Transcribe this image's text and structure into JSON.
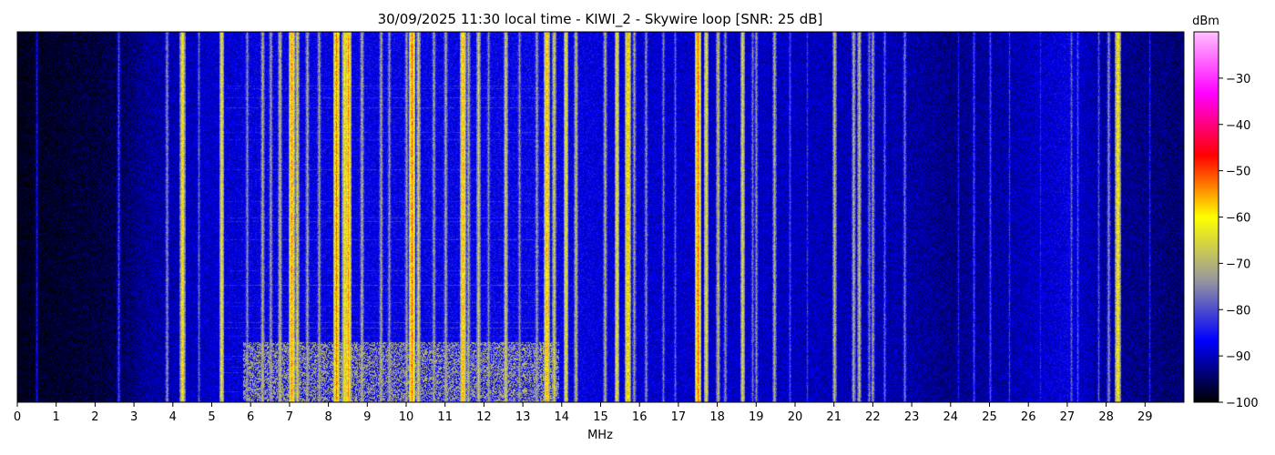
{
  "chart_data": {
    "type": "heatmap",
    "title": "30/09/2025 11:30 local time - KIWI_2 - Skywire loop [SNR: 25 dB]",
    "xlabel": "MHz",
    "xlim": [
      0,
      30
    ],
    "x_ticks": [
      "0",
      "1",
      "2",
      "3",
      "4",
      "5",
      "6",
      "7",
      "8",
      "9",
      "10",
      "11",
      "12",
      "13",
      "14",
      "15",
      "16",
      "17",
      "18",
      "19",
      "20",
      "21",
      "22",
      "23",
      "24",
      "25",
      "26",
      "27",
      "28",
      "29"
    ],
    "colorbar": {
      "label": "dBm",
      "range": [
        -100,
        -20
      ],
      "ticks": [
        "−30",
        "−40",
        "−50",
        "−60",
        "−70",
        "−80",
        "−90",
        "−100"
      ],
      "tick_values": [
        -30,
        -40,
        -50,
        -60,
        -70,
        -80,
        -90,
        -100
      ],
      "colormap": [
        "#000000",
        "#0000ff",
        "#9a9a9a",
        "#ffff00",
        "#ff0000",
        "#ff00ff",
        "#ffc0ff"
      ]
    },
    "background_profile_dbm": [
      [
        0,
        -99
      ],
      [
        2.5,
        -96
      ],
      [
        3.3,
        -92
      ],
      [
        5.2,
        -89
      ],
      [
        6,
        -88
      ],
      [
        13.5,
        -87
      ],
      [
        16,
        -89
      ],
      [
        20,
        -90
      ],
      [
        22.8,
        -91
      ],
      [
        24,
        -93
      ],
      [
        26,
        -90
      ],
      [
        27,
        -88
      ],
      [
        28,
        -92
      ],
      [
        30,
        -94
      ]
    ],
    "strong_signals_mhz": [
      {
        "f": 0.5,
        "dbm": -86
      },
      {
        "f": 2.6,
        "dbm": -80
      },
      {
        "f": 3.85,
        "dbm": -74
      },
      {
        "f": 4.25,
        "dbm": -60
      },
      {
        "f": 4.65,
        "dbm": -78
      },
      {
        "f": 5.25,
        "dbm": -62
      },
      {
        "f": 5.9,
        "dbm": -74
      },
      {
        "f": 6.3,
        "dbm": -70
      },
      {
        "f": 6.5,
        "dbm": -72
      },
      {
        "f": 6.75,
        "dbm": -68
      },
      {
        "f": 7.05,
        "dbm": -54
      },
      {
        "f": 7.2,
        "dbm": -66
      },
      {
        "f": 7.45,
        "dbm": -71
      },
      {
        "f": 7.75,
        "dbm": -72
      },
      {
        "f": 8.2,
        "dbm": -52
      },
      {
        "f": 8.4,
        "dbm": -60
      },
      {
        "f": 8.5,
        "dbm": -54
      },
      {
        "f": 8.85,
        "dbm": -70
      },
      {
        "f": 9.35,
        "dbm": -71
      },
      {
        "f": 9.55,
        "dbm": -73
      },
      {
        "f": 10.0,
        "dbm": -72
      },
      {
        "f": 10.15,
        "dbm": -52
      },
      {
        "f": 10.3,
        "dbm": -66
      },
      {
        "f": 10.7,
        "dbm": -72
      },
      {
        "f": 11.0,
        "dbm": -71
      },
      {
        "f": 11.45,
        "dbm": -56
      },
      {
        "f": 11.6,
        "dbm": -70
      },
      {
        "f": 11.85,
        "dbm": -66
      },
      {
        "f": 12.1,
        "dbm": -74
      },
      {
        "f": 12.55,
        "dbm": -66
      },
      {
        "f": 12.9,
        "dbm": -74
      },
      {
        "f": 13.35,
        "dbm": -72
      },
      {
        "f": 13.6,
        "dbm": -56
      },
      {
        "f": 13.8,
        "dbm": -66
      },
      {
        "f": 14.1,
        "dbm": -62
      },
      {
        "f": 14.35,
        "dbm": -68
      },
      {
        "f": 15.1,
        "dbm": -70
      },
      {
        "f": 15.4,
        "dbm": -62
      },
      {
        "f": 15.7,
        "dbm": -56
      },
      {
        "f": 15.85,
        "dbm": -72
      },
      {
        "f": 16.15,
        "dbm": -74
      },
      {
        "f": 16.6,
        "dbm": -76
      },
      {
        "f": 16.9,
        "dbm": -78
      },
      {
        "f": 17.5,
        "dbm": -52
      },
      {
        "f": 17.7,
        "dbm": -62
      },
      {
        "f": 18.0,
        "dbm": -68
      },
      {
        "f": 18.2,
        "dbm": -74
      },
      {
        "f": 18.65,
        "dbm": -64
      },
      {
        "f": 18.9,
        "dbm": -76
      },
      {
        "f": 19.0,
        "dbm": -74
      },
      {
        "f": 19.45,
        "dbm": -70
      },
      {
        "f": 19.85,
        "dbm": -80
      },
      {
        "f": 20.3,
        "dbm": -82
      },
      {
        "f": 21.0,
        "dbm": -68
      },
      {
        "f": 21.5,
        "dbm": -70
      },
      {
        "f": 21.65,
        "dbm": -68
      },
      {
        "f": 21.9,
        "dbm": -76
      },
      {
        "f": 22.0,
        "dbm": -72
      },
      {
        "f": 22.3,
        "dbm": -78
      },
      {
        "f": 22.8,
        "dbm": -76
      },
      {
        "f": 24.2,
        "dbm": -84
      },
      {
        "f": 24.6,
        "dbm": -80
      },
      {
        "f": 25.0,
        "dbm": -80
      },
      {
        "f": 25.5,
        "dbm": -82
      },
      {
        "f": 26.3,
        "dbm": -84
      },
      {
        "f": 27.1,
        "dbm": -78
      },
      {
        "f": 27.25,
        "dbm": -80
      },
      {
        "f": 27.8,
        "dbm": -80
      },
      {
        "f": 28.05,
        "dbm": -74
      },
      {
        "f": 28.3,
        "dbm": -58
      },
      {
        "f": 29.1,
        "dbm": -84
      }
    ],
    "wideband_burst": {
      "f_start": 5.8,
      "f_end": 13.9,
      "dbm": -72
    }
  }
}
